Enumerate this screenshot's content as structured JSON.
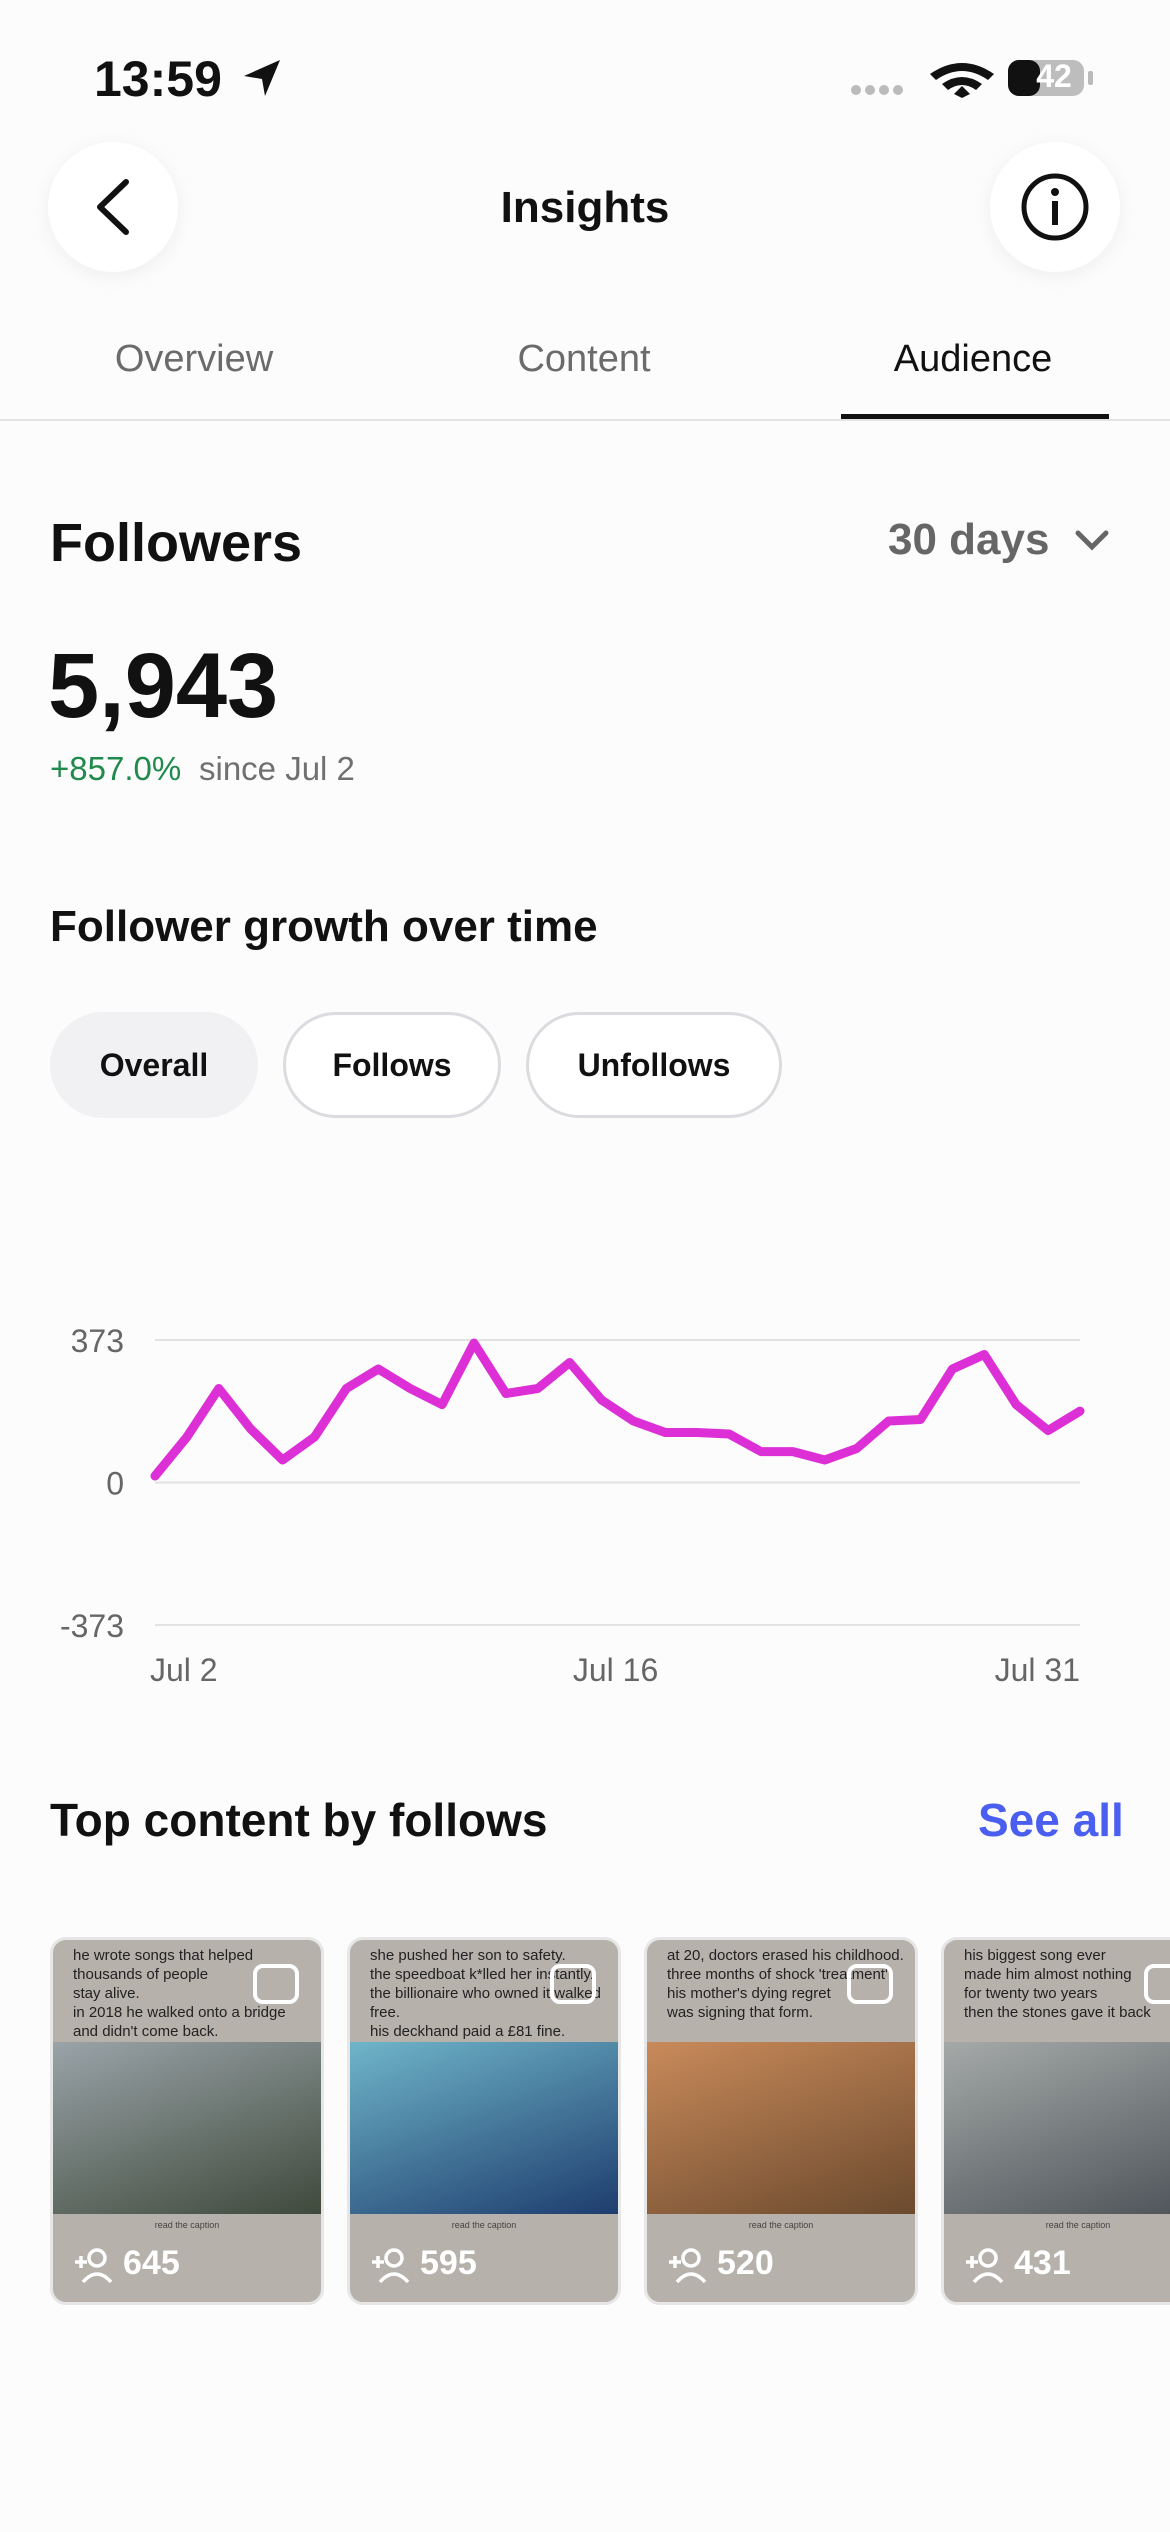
{
  "status": {
    "time": "13:59",
    "battery": "42"
  },
  "header": {
    "title": "Insights"
  },
  "tabs": [
    "Overview",
    "Content",
    "Audience"
  ],
  "followers": {
    "title": "Followers",
    "period": "30 days",
    "count": "5,943",
    "change": "+857.0%",
    "since": "since Jul 2"
  },
  "chart_data": {
    "type": "line",
    "title": "Follower growth over time",
    "filters": [
      "Overall",
      "Follows",
      "Unfollows"
    ],
    "categories": [
      "Jul 2",
      null,
      null,
      null,
      null,
      null,
      null,
      null,
      null,
      null,
      null,
      null,
      null,
      null,
      "Jul 16",
      null,
      null,
      null,
      null,
      null,
      null,
      null,
      null,
      null,
      null,
      null,
      null,
      null,
      null,
      "Jul 31"
    ],
    "values": [
      17,
      119,
      246,
      140,
      59,
      119,
      246,
      297,
      246,
      204,
      365,
      233,
      246,
      314,
      216,
      161,
      131,
      131,
      127,
      81,
      81,
      59,
      89,
      161,
      165,
      297,
      335,
      204,
      136,
      187
    ],
    "color": "#dd2fd6",
    "ylim": [
      -373,
      373
    ],
    "yticks": [
      -373,
      0,
      373
    ],
    "grid": true
  },
  "top_content": {
    "title": "Top content by follows",
    "see_all": "See all",
    "items": [
      {
        "caption": [
          "he wrote songs that helped",
          "thousands of people",
          "stay alive.",
          "in 2018 he walked onto a bridge",
          "and didn't come back."
        ],
        "footer": "read the caption",
        "follows": "645"
      },
      {
        "caption": [
          "she pushed her son to safety.",
          "the speedboat k*lled her instantly.",
          "the billionaire who owned it walked free.",
          "his deckhand paid a £81 fine."
        ],
        "footer": "read the caption",
        "follows": "595"
      },
      {
        "caption": [
          "at 20, doctors erased his childhood.",
          "three months of shock 'treatment'.",
          "his mother's dying regret",
          "was signing that form."
        ],
        "footer": "read the caption",
        "follows": "520"
      },
      {
        "caption": [
          "his biggest song ever",
          "made him almost nothing",
          "for twenty two years",
          "then the stones gave it back"
        ],
        "footer": "read the caption",
        "follows": "431"
      }
    ]
  }
}
